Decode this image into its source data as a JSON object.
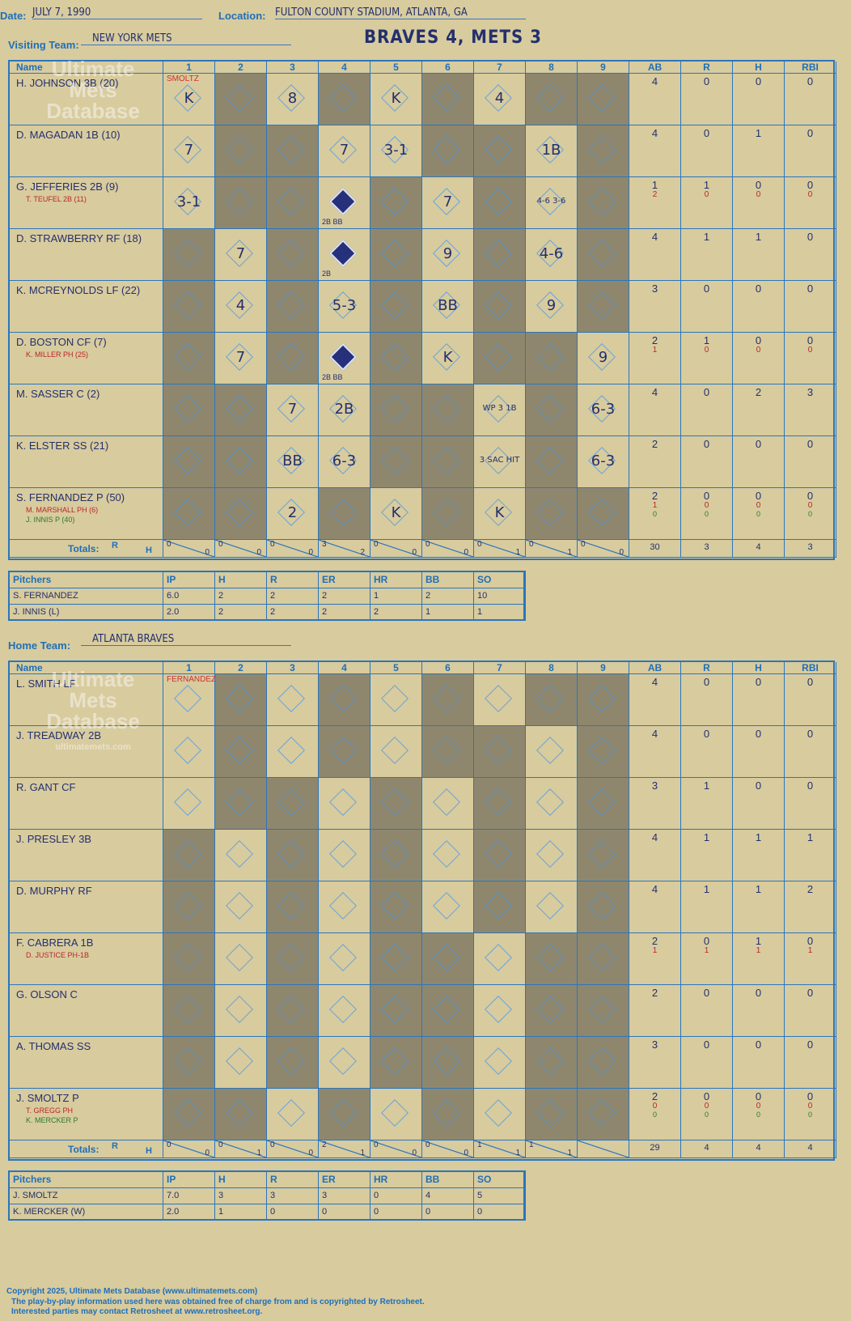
{
  "header": {
    "date_label": "Date:",
    "date": "JULY 7, 1990",
    "location_label": "Location:",
    "location": "FULTON COUNTY STADIUM, ATLANTA, GA",
    "visiting_label": "Visiting Team:",
    "visiting_team": "NEW YORK METS",
    "home_label": "Home Team:",
    "home_team": "ATLANTA BRAVES",
    "final_score": "BRAVES 4, METS 3"
  },
  "columns": {
    "name": "Name",
    "innings": [
      "1",
      "2",
      "3",
      "4",
      "5",
      "6",
      "7",
      "8",
      "9"
    ],
    "stats": [
      "AB",
      "R",
      "H",
      "RBI"
    ],
    "totals": "Totals:",
    "rh": [
      "R",
      "H"
    ]
  },
  "watermark": {
    "line1": "Ultimate",
    "line2": "Mets",
    "line3": "Database",
    "url": "ultimatemets.com"
  },
  "visitors": {
    "pitcher_note": "SMOLTZ",
    "players": [
      {
        "name": "H. JOHNSON 3B (20)",
        "subs": [],
        "ab": [
          "4"
        ],
        "r": [
          "0"
        ],
        "h": [
          "0"
        ],
        "rbi": [
          "0"
        ],
        "plays": [
          [
            "1",
            "K"
          ],
          [
            "3",
            "8"
          ],
          [
            "5",
            "K"
          ],
          [
            "7",
            "4"
          ]
        ]
      },
      {
        "name": "D. MAGADAN 1B (10)",
        "subs": [],
        "ab": [
          "4"
        ],
        "r": [
          "0"
        ],
        "h": [
          "1"
        ],
        "rbi": [
          "0"
        ],
        "plays": [
          [
            "1",
            "7"
          ],
          [
            "4",
            "7"
          ],
          [
            "5",
            "3-1"
          ],
          [
            "8",
            "1B"
          ]
        ]
      },
      {
        "name": "G. JEFFERIES 2B (9)",
        "subs": [
          "T. TEUFEL 2B (11)"
        ],
        "ab": [
          "1",
          "2"
        ],
        "r": [
          "1",
          "0"
        ],
        "h": [
          "0",
          "0"
        ],
        "rbi": [
          "0",
          "0"
        ],
        "plays": [
          [
            "1",
            "3-1"
          ],
          [
            "4",
            "2B BB"
          ],
          [
            "6",
            "7"
          ],
          [
            "8",
            "4-6 3-6"
          ]
        ]
      },
      {
        "name": "D. STRAWBERRY RF (18)",
        "subs": [],
        "ab": [
          "4"
        ],
        "r": [
          "1"
        ],
        "h": [
          "1"
        ],
        "rbi": [
          "0"
        ],
        "plays": [
          [
            "2",
            "7"
          ],
          [
            "4",
            "2B"
          ],
          [
            "6",
            "9"
          ],
          [
            "8",
            "4-6"
          ]
        ]
      },
      {
        "name": "K. MCREYNOLDS LF (22)",
        "subs": [],
        "ab": [
          "3"
        ],
        "r": [
          "0"
        ],
        "h": [
          "0"
        ],
        "rbi": [
          "0"
        ],
        "plays": [
          [
            "2",
            "4"
          ],
          [
            "4",
            "5-3"
          ],
          [
            "6",
            "BB"
          ],
          [
            "8",
            "9"
          ]
        ]
      },
      {
        "name": "D. BOSTON CF (7)",
        "subs": [
          "K. MILLER PH (25)"
        ],
        "ab": [
          "2",
          "1"
        ],
        "r": [
          "1",
          "0"
        ],
        "h": [
          "0",
          "0"
        ],
        "rbi": [
          "0",
          "0"
        ],
        "plays": [
          [
            "2",
            "7"
          ],
          [
            "4",
            "2B BB"
          ],
          [
            "6",
            "K"
          ],
          [
            "9",
            "9"
          ]
        ]
      },
      {
        "name": "M. SASSER C (2)",
        "subs": [],
        "ab": [
          "4"
        ],
        "r": [
          "0"
        ],
        "h": [
          "2"
        ],
        "rbi": [
          "3"
        ],
        "plays": [
          [
            "3",
            "7"
          ],
          [
            "4",
            "2B"
          ],
          [
            "7",
            "WP 3 1B"
          ],
          [
            "9",
            "6-3"
          ]
        ]
      },
      {
        "name": "K. ELSTER SS (21)",
        "subs": [],
        "ab": [
          "2"
        ],
        "r": [
          "0"
        ],
        "h": [
          "0"
        ],
        "rbi": [
          "0"
        ],
        "plays": [
          [
            "3",
            "BB"
          ],
          [
            "4",
            "6-3"
          ],
          [
            "7",
            "3 SAC HIT"
          ],
          [
            "9",
            "6-3"
          ]
        ]
      },
      {
        "name": "S. FERNANDEZ P (50)",
        "subs": [
          "M. MARSHALL PH (6)",
          "J. INNIS P (40)"
        ],
        "ab": [
          "2",
          "1",
          "0"
        ],
        "r": [
          "0",
          "0",
          "0"
        ],
        "h": [
          "0",
          "0",
          "0"
        ],
        "rbi": [
          "0",
          "0",
          "0"
        ],
        "plays": [
          [
            "3",
            "2"
          ],
          [
            "5",
            "K"
          ],
          [
            "7",
            "K"
          ]
        ]
      }
    ],
    "totals_rh": [
      [
        "0",
        "0"
      ],
      [
        "0",
        "0"
      ],
      [
        "0",
        "0"
      ],
      [
        "3",
        "2"
      ],
      [
        "0",
        "0"
      ],
      [
        "0",
        "0"
      ],
      [
        "0",
        "1"
      ],
      [
        "0",
        "1"
      ],
      [
        "0",
        "0"
      ]
    ],
    "totals": [
      "30",
      "3",
      "4",
      "3"
    ],
    "pitchers_header": [
      "Pitchers",
      "IP",
      "H",
      "R",
      "ER",
      "HR",
      "BB",
      "SO"
    ],
    "pitchers": [
      [
        "S. FERNANDEZ",
        "6.0",
        "2",
        "2",
        "2",
        "1",
        "2",
        "10"
      ],
      [
        "J. INNIS (L)",
        "2.0",
        "2",
        "2",
        "2",
        "2",
        "1",
        "1"
      ]
    ]
  },
  "home": {
    "pitcher_note": "FERNANDEZ",
    "players": [
      {
        "name": "L. SMITH LF",
        "subs": [],
        "ab": [
          "4"
        ],
        "r": [
          "0"
        ],
        "h": [
          "0"
        ],
        "rbi": [
          "0"
        ]
      },
      {
        "name": "J. TREADWAY 2B",
        "subs": [],
        "ab": [
          "4"
        ],
        "r": [
          "0"
        ],
        "h": [
          "0"
        ],
        "rbi": [
          "0"
        ]
      },
      {
        "name": "R. GANT CF",
        "subs": [],
        "ab": [
          "3"
        ],
        "r": [
          "1"
        ],
        "h": [
          "0"
        ],
        "rbi": [
          "0"
        ]
      },
      {
        "name": "J. PRESLEY 3B",
        "subs": [],
        "ab": [
          "4"
        ],
        "r": [
          "1"
        ],
        "h": [
          "1"
        ],
        "rbi": [
          "1"
        ]
      },
      {
        "name": "D. MURPHY RF",
        "subs": [],
        "ab": [
          "4"
        ],
        "r": [
          "1"
        ],
        "h": [
          "1"
        ],
        "rbi": [
          "2"
        ]
      },
      {
        "name": "F. CABRERA 1B",
        "subs": [
          "D. JUSTICE PH-1B"
        ],
        "ab": [
          "2",
          "1"
        ],
        "r": [
          "0",
          "1"
        ],
        "h": [
          "1",
          "1"
        ],
        "rbi": [
          "0",
          "1"
        ]
      },
      {
        "name": "G. OLSON C",
        "subs": [],
        "ab": [
          "2"
        ],
        "r": [
          "0"
        ],
        "h": [
          "0"
        ],
        "rbi": [
          "0"
        ]
      },
      {
        "name": "A. THOMAS SS",
        "subs": [],
        "ab": [
          "3"
        ],
        "r": [
          "0"
        ],
        "h": [
          "0"
        ],
        "rbi": [
          "0"
        ]
      },
      {
        "name": "J. SMOLTZ P",
        "subs": [
          "T. GREGG PH",
          "K. MERCKER P"
        ],
        "ab": [
          "2",
          "0",
          "0"
        ],
        "r": [
          "0",
          "0",
          "0"
        ],
        "h": [
          "0",
          "0",
          "0"
        ],
        "rbi": [
          "0",
          "0",
          "0"
        ]
      }
    ],
    "totals_rh": [
      [
        "0",
        "0"
      ],
      [
        "0",
        "1"
      ],
      [
        "0",
        "0"
      ],
      [
        "2",
        "1"
      ],
      [
        "0",
        "0"
      ],
      [
        "0",
        "0"
      ],
      [
        "1",
        "1"
      ],
      [
        "1",
        "1"
      ],
      [
        "",
        ""
      ]
    ],
    "totals": [
      "29",
      "4",
      "4",
      "4"
    ],
    "pitchers_header": [
      "Pitchers",
      "IP",
      "H",
      "R",
      "ER",
      "HR",
      "BB",
      "SO"
    ],
    "pitchers": [
      [
        "J. SMOLTZ",
        "7.0",
        "3",
        "3",
        "3",
        "0",
        "4",
        "5"
      ],
      [
        "K. MERCKER (W)",
        "2.0",
        "1",
        "0",
        "0",
        "0",
        "0",
        "0"
      ]
    ]
  },
  "footer": {
    "line1": "Copyright 2025, Ultimate Mets Database (www.ultimatemets.com)",
    "line2": "The play-by-play information used here was obtained free of charge from and is copyrighted by Retrosheet.",
    "line3": "Interested parties may contact Retrosheet at www.retrosheet.org."
  }
}
